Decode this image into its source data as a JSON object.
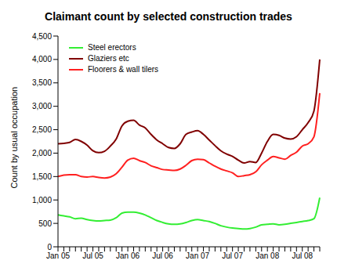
{
  "chart_data": {
    "type": "line",
    "title": "Claimant count by selected construction trades",
    "y_label": "Count by usual occupation",
    "categories": [
      "Jan 05",
      null,
      null,
      null,
      null,
      null,
      "Jul 05",
      null,
      null,
      null,
      null,
      null,
      "Jan 06",
      null,
      null,
      null,
      null,
      null,
      "Jul 06",
      null,
      null,
      null,
      null,
      null,
      "Jan 07",
      null,
      null,
      null,
      null,
      null,
      "Jul 07",
      null,
      null,
      null,
      null,
      null,
      "Jan 08",
      null,
      null,
      null,
      null,
      null,
      "Jul 08",
      null,
      null,
      null
    ],
    "series": [
      {
        "name": "Steel erectors",
        "color": "#33ee33",
        "values": [
          680,
          660,
          640,
          600,
          610,
          580,
          560,
          550,
          560,
          570,
          620,
          720,
          740,
          740,
          720,
          680,
          620,
          560,
          520,
          490,
          480,
          490,
          520,
          560,
          580,
          560,
          540,
          500,
          450,
          420,
          400,
          390,
          380,
          390,
          420,
          470,
          480,
          490,
          470,
          480,
          500,
          520,
          540,
          560,
          600,
          1050
        ]
      },
      {
        "name": "Glaziers etc",
        "color": "#800000",
        "values": [
          2200,
          2210,
          2230,
          2290,
          2250,
          2170,
          2050,
          2010,
          2040,
          2150,
          2300,
          2580,
          2680,
          2700,
          2600,
          2540,
          2400,
          2280,
          2200,
          2120,
          2100,
          2200,
          2400,
          2450,
          2480,
          2400,
          2280,
          2160,
          2050,
          1980,
          1930,
          1850,
          1790,
          1820,
          1800,
          2000,
          2250,
          2400,
          2380,
          2320,
          2300,
          2350,
          2500,
          2650,
          2900,
          4000
        ]
      },
      {
        "name": "Floorers & wall tilers",
        "color": "#ff2020",
        "values": [
          1500,
          1530,
          1540,
          1540,
          1500,
          1490,
          1500,
          1480,
          1470,
          1490,
          1560,
          1700,
          1850,
          1890,
          1840,
          1800,
          1730,
          1690,
          1650,
          1640,
          1630,
          1660,
          1740,
          1840,
          1870,
          1860,
          1790,
          1720,
          1660,
          1620,
          1580,
          1500,
          1520,
          1540,
          1600,
          1750,
          1850,
          1930,
          1900,
          1870,
          1950,
          2020,
          2150,
          2200,
          2350,
          3280
        ]
      }
    ],
    "ylim": [
      0,
      4500
    ],
    "yticks": [
      0,
      500,
      {
        "value": 1000,
        "label": "1,000"
      },
      {
        "value": 1500,
        "label": "1,500"
      },
      {
        "value": 2000,
        "label": "2,000"
      },
      {
        "value": 2500,
        "label": "2,500"
      },
      {
        "value": 3000,
        "label": "3,000"
      },
      {
        "value": 3500,
        "label": "3,500"
      },
      {
        "value": 4000,
        "label": "4,000"
      },
      {
        "value": 4500,
        "label": "4,500"
      }
    ],
    "grid": false,
    "legend": "upper left"
  }
}
